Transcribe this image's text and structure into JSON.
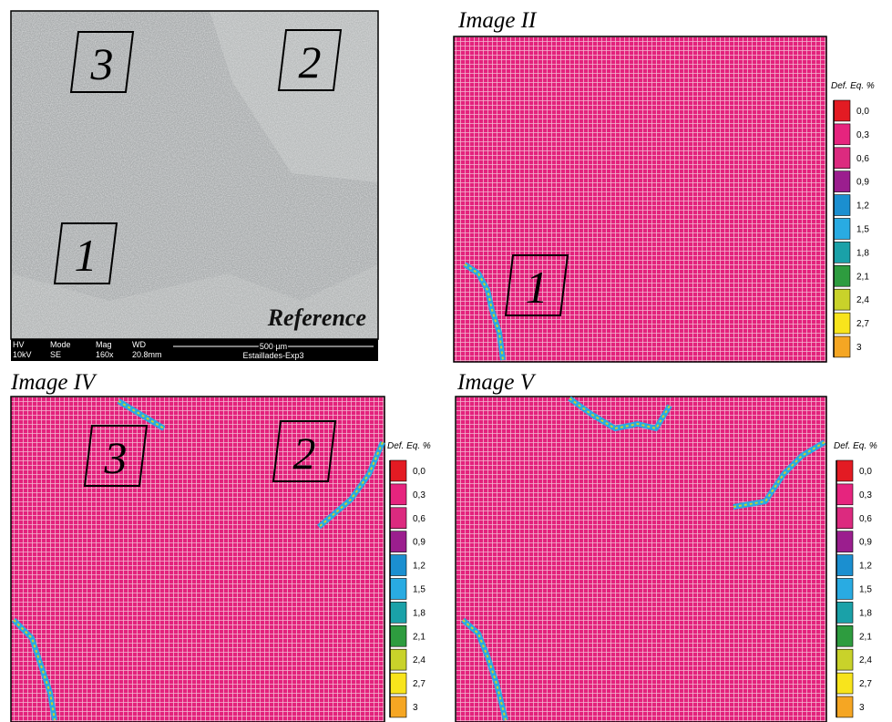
{
  "reference": {
    "label": "Reference",
    "regions": [
      "3",
      "2",
      "1"
    ],
    "info_bar": {
      "fields": [
        {
          "name": "HV",
          "value": "10kV"
        },
        {
          "name": "Mode",
          "value": "SE"
        },
        {
          "name": "Mag",
          "value": "160x"
        },
        {
          "name": "WD",
          "value": "20.8mm"
        }
      ],
      "scale_bar": "500 µm",
      "sample": "Estaillades-Exp3"
    }
  },
  "maps": [
    {
      "title": "Image II",
      "regions": [
        "1"
      ]
    },
    {
      "title": "Image IV",
      "regions": [
        "3",
        "2"
      ]
    },
    {
      "title": "Image V"
    }
  ],
  "legend": {
    "title": "Def. Eq. %",
    "entries": [
      {
        "label": "0,0",
        "color": "#e31b23"
      },
      {
        "label": "0,3",
        "color": "#e6247e"
      },
      {
        "label": "0,6",
        "color": "#dc2a7f"
      },
      {
        "label": "0,9",
        "color": "#9b1e8e"
      },
      {
        "label": "1,2",
        "color": "#1b8fd0"
      },
      {
        "label": "1,5",
        "color": "#29abe2"
      },
      {
        "label": "1,8",
        "color": "#1aa1a8"
      },
      {
        "label": "2,1",
        "color": "#2e9c3f"
      },
      {
        "label": "2,4",
        "color": "#c9d22a"
      },
      {
        "label": "2,7",
        "color": "#f8e41c"
      },
      {
        "label": "3",
        "color": "#f5a623"
      }
    ]
  }
}
